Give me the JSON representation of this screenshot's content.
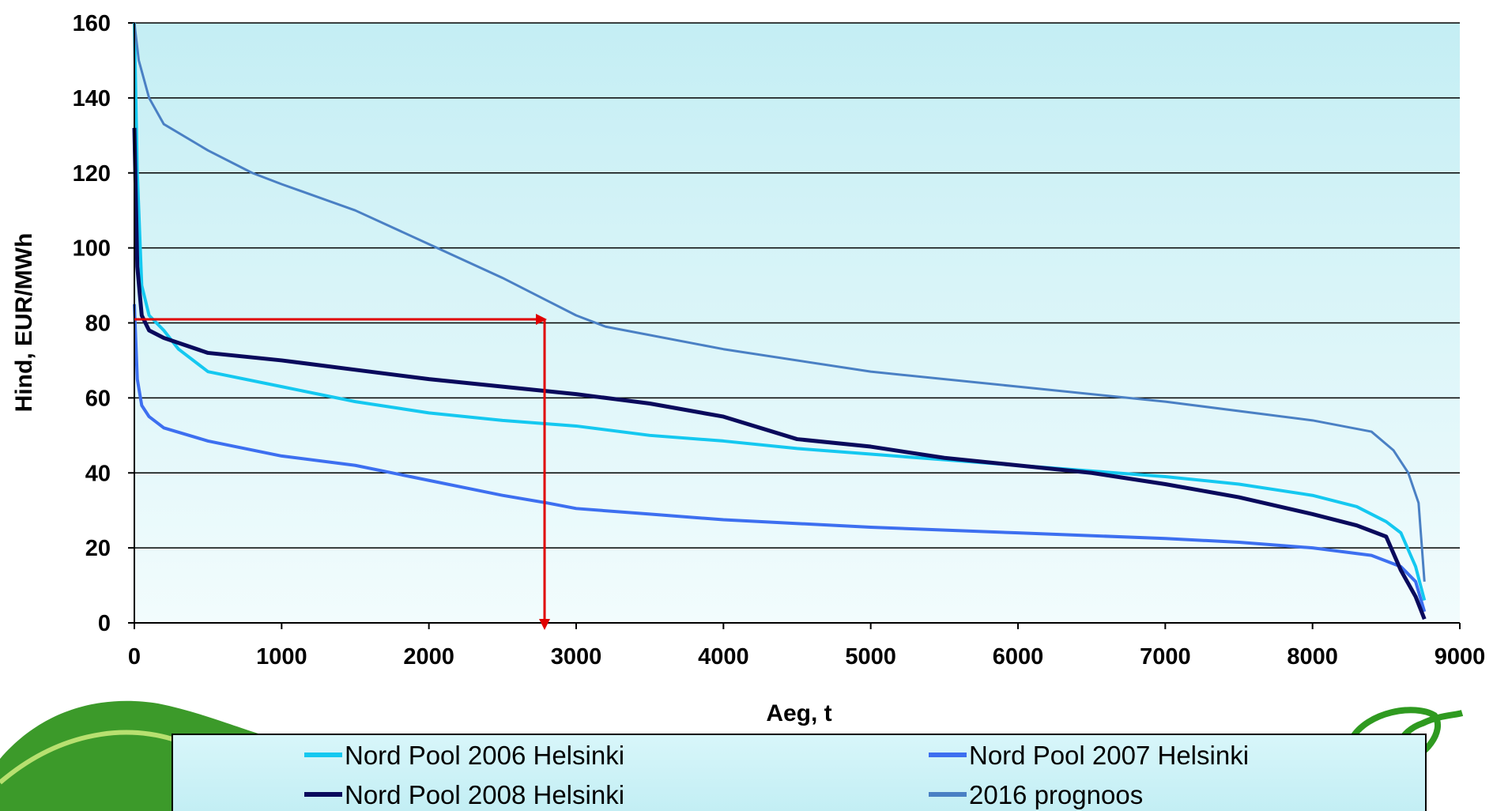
{
  "chart_data": {
    "type": "line",
    "x_label": "Aeg, t",
    "y_label": "Hind, EUR/MWh",
    "xlim": [
      0,
      9000
    ],
    "xticks": [
      0,
      1000,
      2000,
      3000,
      4000,
      5000,
      6000,
      7000,
      8000,
      9000
    ],
    "ylim": [
      0,
      160
    ],
    "yticks": [
      0,
      20,
      40,
      60,
      80,
      100,
      120,
      140,
      160
    ],
    "grid": true,
    "series": [
      {
        "name": "Nord Pool 2006 Helsinki",
        "color": "#14c8f0",
        "x": [
          0,
          20,
          50,
          100,
          200,
          300,
          500,
          1000,
          1500,
          2000,
          2500,
          3000,
          3500,
          4000,
          4500,
          5000,
          5500,
          6000,
          6500,
          7000,
          7500,
          8000,
          8300,
          8500,
          8600,
          8700,
          8760
        ],
        "values": [
          160,
          120,
          90,
          82,
          78,
          73,
          67,
          63,
          59,
          56,
          54,
          52.5,
          50,
          48.5,
          46.5,
          45,
          43.5,
          42,
          40.5,
          39,
          37,
          34,
          31,
          27,
          24,
          15,
          6
        ]
      },
      {
        "name": "Nord Pool 2007 Helsinki",
        "color": "#3d6ff0",
        "x": [
          0,
          20,
          50,
          100,
          200,
          500,
          1000,
          1500,
          2000,
          2500,
          2800,
          3000,
          3500,
          4000,
          5000,
          6000,
          7000,
          7500,
          8000,
          8400,
          8600,
          8700,
          8760
        ],
        "values": [
          85,
          65,
          58,
          55,
          52,
          48.5,
          44.5,
          42,
          38,
          34,
          32,
          30.5,
          29,
          27.5,
          25.5,
          24,
          22.5,
          21.5,
          20,
          18,
          15,
          11,
          3
        ]
      },
      {
        "name": "Nord Pool 2008 Helsinki",
        "color": "#0a0a5c",
        "x": [
          0,
          20,
          50,
          100,
          200,
          500,
          1000,
          1500,
          2000,
          2500,
          3000,
          3500,
          4000,
          4500,
          5000,
          5500,
          6000,
          6500,
          7000,
          7500,
          8000,
          8300,
          8500,
          8600,
          8700,
          8760
        ],
        "values": [
          132,
          95,
          82,
          78,
          76,
          72,
          70,
          67.5,
          65,
          63,
          61,
          58.5,
          55,
          49,
          47,
          44,
          42,
          40,
          37,
          33.5,
          29,
          26,
          23,
          14,
          7,
          1
        ]
      },
      {
        "name": "2016 prognoos",
        "color": "#4a80c4",
        "x": [
          0,
          30,
          100,
          200,
          500,
          800,
          1000,
          1500,
          2000,
          2500,
          2800,
          3000,
          3200,
          4000,
          5000,
          6000,
          7000,
          8000,
          8400,
          8550,
          8650,
          8720,
          8760
        ],
        "values": [
          160,
          150,
          140,
          133,
          126,
          120,
          117,
          110,
          101,
          92,
          86,
          82,
          79,
          73,
          67,
          63,
          59,
          54,
          51,
          46,
          40,
          32,
          11
        ]
      }
    ]
  }
}
